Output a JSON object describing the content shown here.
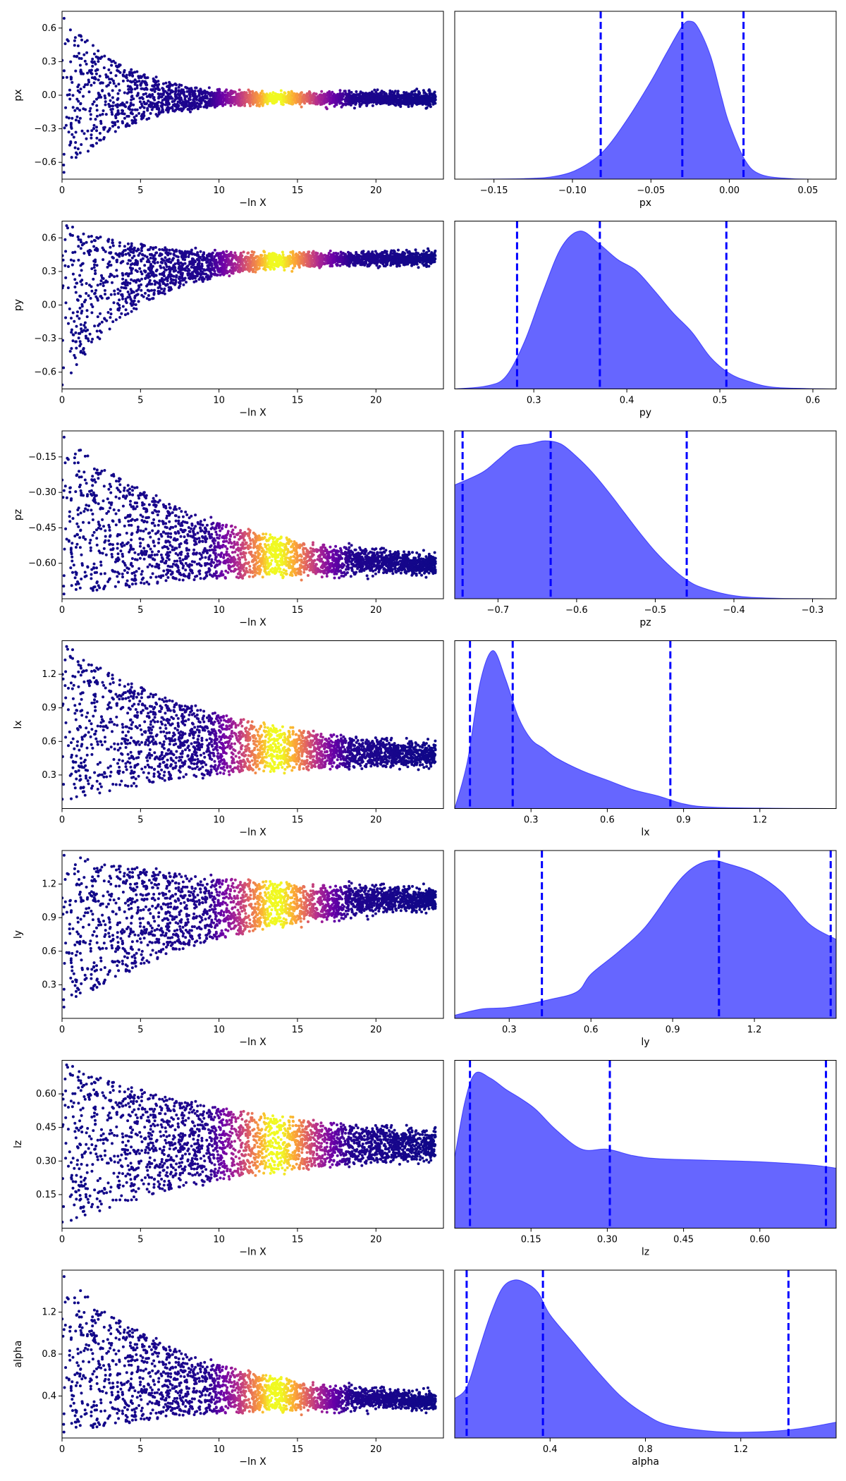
{
  "chart_data": [
    {
      "param": "px",
      "trace": {
        "type": "scatter",
        "xlabel": "−ln X",
        "ylabel": "px",
        "xlim": [
          0,
          24.3
        ],
        "ylim": [
          -0.75,
          0.75
        ],
        "xticks": [
          0,
          5,
          10,
          15,
          20
        ],
        "yticks": [
          -0.6,
          -0.3,
          0.0,
          0.3,
          0.6
        ],
        "ytick_labels": [
          "−0.6",
          "−0.3",
          "0.0",
          "0.3",
          "0.6"
        ],
        "center": -0.03,
        "y_lo": -0.75,
        "y_hi": 0.75,
        "approach": 4,
        "colormap": "plasma"
      },
      "posterior": {
        "type": "area",
        "xlabel": "px",
        "xlim": [
          -0.175,
          0.068
        ],
        "xticks": [
          -0.15,
          -0.1,
          -0.05,
          0.0,
          0.05
        ],
        "xtick_labels": [
          "−0.15",
          "−0.10",
          "−0.05",
          "0.00",
          "0.05"
        ],
        "density_x": [
          -0.175,
          -0.13,
          -0.11,
          -0.095,
          -0.08,
          -0.065,
          -0.05,
          -0.04,
          -0.03,
          -0.025,
          -0.02,
          -0.012,
          -0.005,
          0.0,
          0.01,
          0.02,
          0.04,
          0.068
        ],
        "density_y": [
          0.0,
          0.004,
          0.02,
          0.07,
          0.18,
          0.38,
          0.62,
          0.8,
          0.97,
          1.0,
          0.96,
          0.78,
          0.52,
          0.35,
          0.12,
          0.03,
          0.003,
          0.0
        ],
        "quantiles": [
          -0.082,
          -0.03,
          0.009
        ]
      }
    },
    {
      "param": "py",
      "trace": {
        "type": "scatter",
        "xlabel": "−ln X",
        "ylabel": "py",
        "xlim": [
          0,
          24.3
        ],
        "ylim": [
          -0.75,
          0.75
        ],
        "xticks": [
          0,
          5,
          10,
          15,
          20
        ],
        "yticks": [
          -0.6,
          -0.3,
          0.0,
          0.3,
          0.6
        ],
        "ytick_labels": [
          "−0.6",
          "−0.3",
          "0.0",
          "0.3",
          "0.6"
        ],
        "center": 0.42,
        "y_lo": -0.75,
        "y_hi": 0.75,
        "approach": 5,
        "colormap": "plasma"
      },
      "posterior": {
        "type": "area",
        "xlabel": "py",
        "xlim": [
          0.215,
          0.625
        ],
        "xticks": [
          0.3,
          0.4,
          0.5,
          0.6
        ],
        "xtick_labels": [
          "0.3",
          "0.4",
          "0.5",
          "0.6"
        ],
        "density_x": [
          0.215,
          0.25,
          0.27,
          0.29,
          0.31,
          0.33,
          0.35,
          0.37,
          0.39,
          0.41,
          0.43,
          0.45,
          0.47,
          0.49,
          0.51,
          0.53,
          0.56,
          0.625
        ],
        "density_y": [
          0.0,
          0.02,
          0.08,
          0.3,
          0.62,
          0.9,
          1.0,
          0.92,
          0.82,
          0.75,
          0.62,
          0.48,
          0.36,
          0.2,
          0.1,
          0.05,
          0.01,
          0.0
        ],
        "quantiles": [
          0.282,
          0.371,
          0.507
        ]
      }
    },
    {
      "param": "pz",
      "trace": {
        "type": "scatter",
        "xlabel": "−ln X",
        "ylabel": "pz",
        "xlim": [
          0,
          24.3
        ],
        "ylim": [
          -0.75,
          -0.04
        ],
        "xticks": [
          0,
          5,
          10,
          15,
          20
        ],
        "yticks": [
          -0.6,
          -0.45,
          -0.3,
          -0.15
        ],
        "ytick_labels": [
          "−0.60",
          "−0.45",
          "−0.30",
          "−0.15"
        ],
        "center": -0.62,
        "y_lo": -0.75,
        "y_hi": -0.04,
        "approach": 9,
        "colormap": "plasma"
      },
      "posterior": {
        "type": "area",
        "xlabel": "pz",
        "xlim": [
          -0.755,
          -0.27
        ],
        "xticks": [
          -0.7,
          -0.6,
          -0.5,
          -0.4,
          -0.3
        ],
        "xtick_labels": [
          "−0.7",
          "−0.6",
          "−0.5",
          "−0.4",
          "−0.3"
        ],
        "density_x": [
          -0.755,
          -0.72,
          -0.7,
          -0.68,
          -0.66,
          -0.64,
          -0.62,
          -0.6,
          -0.58,
          -0.56,
          -0.54,
          -0.52,
          -0.5,
          -0.48,
          -0.46,
          -0.44,
          -0.4,
          -0.35,
          -0.27
        ],
        "density_y": [
          0.72,
          0.8,
          0.88,
          0.96,
          0.98,
          1.0,
          0.98,
          0.9,
          0.8,
          0.68,
          0.55,
          0.42,
          0.3,
          0.2,
          0.12,
          0.07,
          0.02,
          0.004,
          0.0
        ],
        "quantiles": [
          -0.745,
          -0.633,
          -0.46
        ]
      }
    },
    {
      "param": "lx",
      "trace": {
        "type": "scatter",
        "xlabel": "−ln X",
        "ylabel": "lx",
        "xlim": [
          0,
          24.3
        ],
        "ylim": [
          0.0,
          1.5
        ],
        "xticks": [
          0,
          5,
          10,
          15,
          20
        ],
        "yticks": [
          0.3,
          0.6,
          0.9,
          1.2
        ],
        "ytick_labels": [
          "0.3",
          "0.6",
          "0.9",
          "1.2"
        ],
        "center": 0.45,
        "y_lo": 0.05,
        "y_hi": 1.5,
        "approach": 10,
        "colormap": "plasma"
      },
      "posterior": {
        "type": "area",
        "xlabel": "lx",
        "xlim": [
          0.0,
          1.5
        ],
        "xticks": [
          0.3,
          0.6,
          0.9,
          1.2
        ],
        "xtick_labels": [
          "0.3",
          "0.6",
          "0.9",
          "1.2"
        ],
        "density_x": [
          0.0,
          0.05,
          0.1,
          0.15,
          0.2,
          0.25,
          0.3,
          0.35,
          0.4,
          0.5,
          0.6,
          0.7,
          0.8,
          0.9,
          1.0,
          1.2,
          1.5
        ],
        "density_y": [
          0.0,
          0.3,
          0.8,
          1.0,
          0.82,
          0.58,
          0.44,
          0.38,
          0.32,
          0.24,
          0.18,
          0.12,
          0.08,
          0.03,
          0.01,
          0.003,
          0.0
        ],
        "quantiles": [
          0.06,
          0.228,
          0.848
        ]
      }
    },
    {
      "param": "ly",
      "trace": {
        "type": "scatter",
        "xlabel": "−ln X",
        "ylabel": "ly",
        "xlim": [
          0,
          24.3
        ],
        "ylim": [
          0.0,
          1.5
        ],
        "xticks": [
          0,
          5,
          10,
          15,
          20
        ],
        "yticks": [
          0.3,
          0.6,
          0.9,
          1.2
        ],
        "ytick_labels": [
          "0.3",
          "0.6",
          "0.9",
          "1.2"
        ],
        "center": 1.1,
        "y_lo": 0.05,
        "y_hi": 1.5,
        "approach": 10,
        "colormap": "plasma"
      },
      "posterior": {
        "type": "area",
        "xlabel": "ly",
        "xlim": [
          0.1,
          1.5
        ],
        "xticks": [
          0.3,
          0.6,
          0.9,
          1.2
        ],
        "xtick_labels": [
          "0.3",
          "0.6",
          "0.9",
          "1.2"
        ],
        "density_x": [
          0.1,
          0.2,
          0.3,
          0.45,
          0.55,
          0.6,
          0.7,
          0.8,
          0.9,
          0.95,
          1.0,
          1.05,
          1.1,
          1.2,
          1.3,
          1.4,
          1.5
        ],
        "density_y": [
          0.02,
          0.06,
          0.07,
          0.12,
          0.17,
          0.28,
          0.42,
          0.58,
          0.82,
          0.92,
          0.98,
          1.0,
          0.98,
          0.92,
          0.8,
          0.6,
          0.5
        ],
        "quantiles": [
          0.42,
          1.07,
          1.48
        ]
      }
    },
    {
      "param": "lz",
      "trace": {
        "type": "scatter",
        "xlabel": "−ln X",
        "ylabel": "lz",
        "xlim": [
          0,
          24.3
        ],
        "ylim": [
          0.0,
          0.75
        ],
        "xticks": [
          0,
          5,
          10,
          15,
          20
        ],
        "yticks": [
          0.15,
          0.3,
          0.45,
          0.6
        ],
        "ytick_labels": [
          "0.15",
          "0.30",
          "0.45",
          "0.60"
        ],
        "center": 0.37,
        "y_lo": 0.01,
        "y_hi": 0.75,
        "approach": 12,
        "colormap": "plasma"
      },
      "posterior": {
        "type": "area",
        "xlabel": "lz",
        "xlim": [
          0.0,
          0.75
        ],
        "xticks": [
          0.15,
          0.3,
          0.45,
          0.6
        ],
        "xtick_labels": [
          "0.15",
          "0.30",
          "0.45",
          "0.60"
        ],
        "density_x": [
          0.0,
          0.02,
          0.04,
          0.07,
          0.1,
          0.13,
          0.16,
          0.2,
          0.25,
          0.3,
          0.35,
          0.4,
          0.5,
          0.6,
          0.7,
          0.75
        ],
        "density_y": [
          0.45,
          0.8,
          0.98,
          0.95,
          0.88,
          0.82,
          0.75,
          0.62,
          0.5,
          0.5,
          0.46,
          0.44,
          0.43,
          0.42,
          0.4,
          0.38
        ],
        "quantiles": [
          0.03,
          0.305,
          0.73
        ]
      }
    },
    {
      "param": "alpha",
      "trace": {
        "type": "scatter",
        "xlabel": "−ln X",
        "ylabel": "alpha",
        "xlim": [
          0,
          24.3
        ],
        "ylim": [
          0.0,
          1.6
        ],
        "xticks": [
          0,
          5,
          10,
          15,
          20
        ],
        "yticks": [
          0.4,
          0.8,
          1.2
        ],
        "ytick_labels": [
          "0.4",
          "0.8",
          "1.2"
        ],
        "center": 0.33,
        "y_lo": 0.01,
        "y_hi": 1.6,
        "approach": 8,
        "colormap": "plasma"
      },
      "posterior": {
        "type": "area",
        "xlabel": "alpha",
        "xlim": [
          0.0,
          1.6
        ],
        "xticks": [
          0.4,
          0.8,
          1.2
        ],
        "xtick_labels": [
          "0.4",
          "0.8",
          "1.2"
        ],
        "density_x": [
          0.0,
          0.05,
          0.1,
          0.15,
          0.2,
          0.25,
          0.3,
          0.35,
          0.4,
          0.5,
          0.6,
          0.7,
          0.8,
          0.9,
          1.1,
          1.3,
          1.45,
          1.6
        ],
        "density_y": [
          0.25,
          0.32,
          0.55,
          0.78,
          0.95,
          1.0,
          0.98,
          0.92,
          0.78,
          0.6,
          0.42,
          0.26,
          0.15,
          0.08,
          0.04,
          0.04,
          0.06,
          0.1
        ],
        "quantiles": [
          0.05,
          0.37,
          1.4
        ]
      }
    }
  ]
}
